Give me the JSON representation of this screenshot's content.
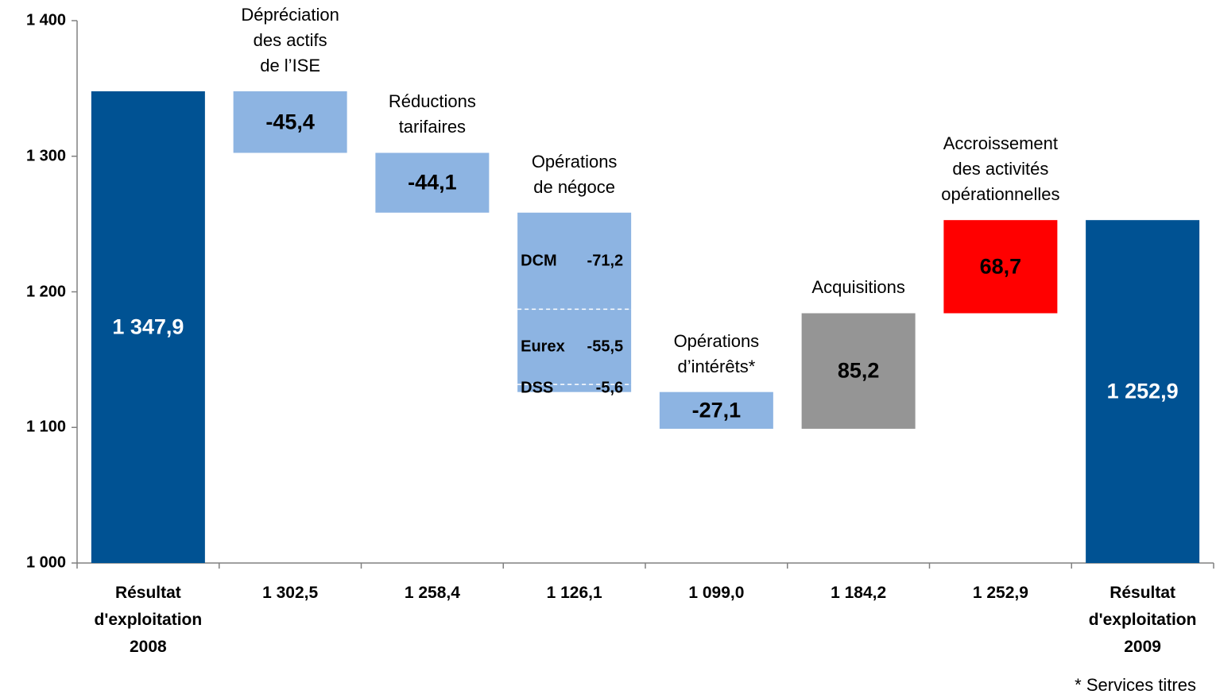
{
  "chart_data": {
    "type": "waterfall",
    "categories": [
      "Résultat\nd'exploitation\n2008",
      "1 302,5",
      "1 258,4",
      "1 126,1",
      "1 099,0",
      "1 184,2",
      "1 252,9",
      "Résultat\nd'exploitation\n2009"
    ],
    "ylim": [
      1000,
      1400
    ],
    "yticks": [
      {
        "value": 1000,
        "label": "1 000"
      },
      {
        "value": 1100,
        "label": "1 100"
      },
      {
        "value": 1200,
        "label": "1 200"
      },
      {
        "value": 1300,
        "label": "1 300"
      },
      {
        "value": 1400,
        "label": "1 400"
      }
    ],
    "start": {
      "value": 1347.9,
      "value_label": "1 347,9",
      "color": "#005293"
    },
    "steps": [
      {
        "annotation": "Dépréciation\ndes actifs\nde l’ISE",
        "color": "#8db4e2",
        "values": [
          -45.4
        ],
        "value_labels": [
          "-45,4"
        ]
      },
      {
        "annotation": "Réductions\ntarifaires",
        "color": "#8db4e2",
        "values": [
          -44.1
        ],
        "value_labels": [
          "-44,1"
        ]
      },
      {
        "annotation": "Opérations\nde négoce",
        "color": "#8db4e2",
        "segment_names": [
          "DCM",
          "Eurex",
          "DSS"
        ],
        "values": [
          -71.2,
          -55.5,
          -5.6
        ],
        "value_labels": [
          "-71,2",
          "-55,5",
          "-5,6"
        ]
      },
      {
        "annotation": "Opérations\nd’intérêts*",
        "color": "#8db4e2",
        "values": [
          -27.1
        ],
        "value_labels": [
          "-27,1"
        ]
      },
      {
        "annotation": "Acquisitions",
        "color": "#959595",
        "values": [
          85.2
        ],
        "value_labels": [
          "85,2"
        ]
      },
      {
        "annotation": "Accroissement\ndes activités\nopérationnelles",
        "color": "#ff0000",
        "values": [
          68.7
        ],
        "value_labels": [
          "68,7"
        ]
      }
    ],
    "end": {
      "value": 1252.9,
      "value_label": "1 252,9",
      "color": "#005293"
    },
    "note": "* Services titres"
  }
}
